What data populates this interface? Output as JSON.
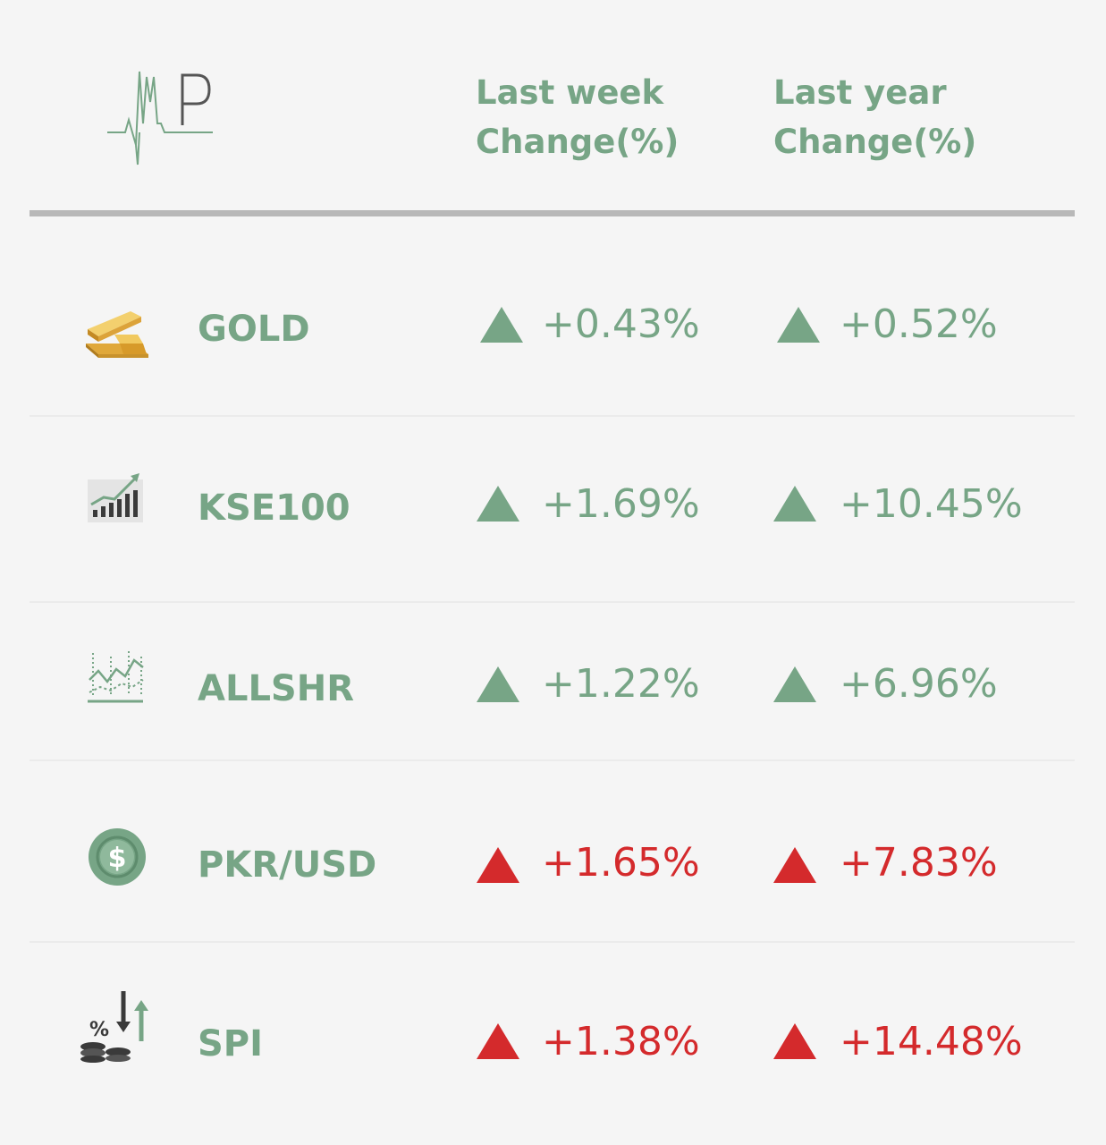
{
  "header": {
    "logo": "AMP",
    "week_line1": "Last week",
    "week_line2": "Change(%)",
    "year_line1": "Last year",
    "year_line2": "Change(%)"
  },
  "colors": {
    "positive": "#77a586",
    "negative": "#d42a2c",
    "background": "#f5f5f5"
  },
  "rows": [
    {
      "name": "GOLD",
      "icon": "gold-bar-icon",
      "week": "+0.43%",
      "year": "+0.52%",
      "week_trend": "up-green",
      "year_trend": "up-green"
    },
    {
      "name": "KSE100",
      "icon": "bar-chart-growth-icon",
      "week": "+1.69%",
      "year": "+10.45%",
      "week_trend": "up-green",
      "year_trend": "up-green"
    },
    {
      "name": "ALLSHR",
      "icon": "line-chart-icon",
      "week": "+1.22%",
      "year": "+6.96%",
      "week_trend": "up-green",
      "year_trend": "up-green"
    },
    {
      "name": "PKR/USD",
      "icon": "dollar-coin-icon",
      "week": "+1.65%",
      "year": "+7.83%",
      "week_trend": "up-red",
      "year_trend": "up-red"
    },
    {
      "name": "SPI",
      "icon": "coins-percent-icon",
      "week": "+1.38%",
      "year": "+14.48%",
      "week_trend": "up-red",
      "year_trend": "up-red"
    }
  ]
}
